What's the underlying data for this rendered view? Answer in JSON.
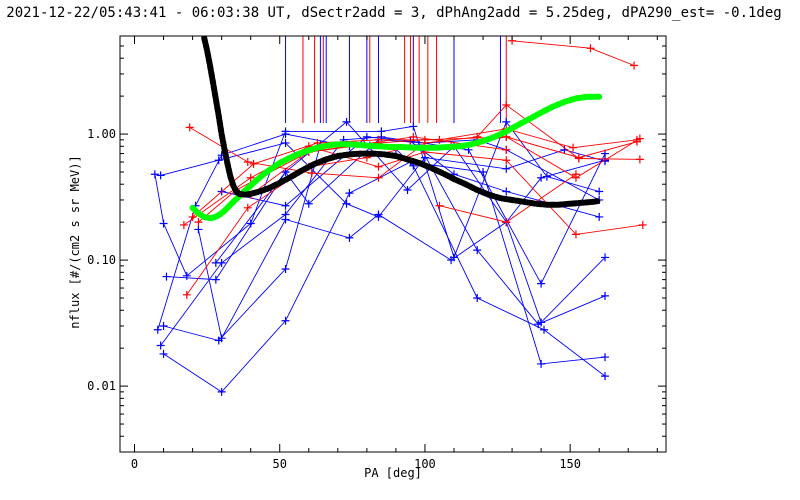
{
  "chart_data": {
    "type": "line",
    "title": "2021-12-22/05:43:41 - 06:03:38 UT, dSectr2add = 3, dPhAng2add = 5.25deg, dPA290_est=  -0.1deg",
    "xlabel": "PA [deg]",
    "ylabel": "nflux [#/(cm2 s sr MeV)]",
    "xlim": [
      -5,
      183
    ],
    "ylim": [
      0.003,
      6.0
    ],
    "yscale": "log",
    "grid": false,
    "x_ticks": [
      0,
      50,
      100,
      150
    ],
    "x_tick_labels": [
      "0",
      "50",
      "100",
      "150"
    ],
    "y_ticks": [
      0.01,
      0.1,
      1.0
    ],
    "y_tick_labels": [
      "0.01",
      "0.10",
      "1.00"
    ],
    "colors": {
      "blue": "#0000ff",
      "red": "#ff0000",
      "green": "#00ff00",
      "black": "#000000"
    },
    "series": [
      {
        "color": "blue",
        "x": [
          7,
          10,
          18,
          40,
          52,
          85,
          96,
          110,
          128,
          142,
          160
        ],
        "y": [
          0.48,
          0.195,
          0.075,
          0.195,
          1.05,
          1.05,
          1.15,
          0.105,
          1.25,
          0.46,
          0.35
        ]
      },
      {
        "color": "blue",
        "x": [
          8,
          21,
          30,
          52,
          74,
          90,
          96,
          118,
          141,
          162
        ],
        "y": [
          0.028,
          0.27,
          0.68,
          1.0,
          0.8,
          0.76,
          0.56,
          0.05,
          0.028,
          0.012
        ]
      },
      {
        "color": "blue",
        "x": [
          9,
          30,
          52,
          72,
          85,
          95,
          115,
          140,
          162
        ],
        "y": [
          0.021,
          0.095,
          0.23,
          0.9,
          0.95,
          0.88,
          0.75,
          0.065,
          0.7
        ]
      },
      {
        "color": "blue",
        "x": [
          10,
          29,
          52,
          64,
          81,
          98,
          118,
          139,
          162
        ],
        "y": [
          0.03,
          0.023,
          0.085,
          0.82,
          0.81,
          0.82,
          0.12,
          0.031,
          0.052
        ]
      },
      {
        "color": "blue",
        "x": [
          10,
          30,
          52,
          74,
          95,
          120,
          140,
          162
        ],
        "y": [
          0.018,
          0.009,
          0.033,
          0.34,
          0.6,
          0.5,
          0.015,
          0.017
        ]
      },
      {
        "color": "blue",
        "x": [
          11,
          28,
          52,
          73,
          94,
          110,
          128,
          140,
          162
        ],
        "y": [
          0.074,
          0.07,
          0.5,
          1.25,
          0.36,
          0.8,
          0.2,
          0.45,
          0.62
        ]
      },
      {
        "color": "blue",
        "x": [
          9,
          29,
          52,
          73,
          84,
          100,
          128,
          148,
          162
        ],
        "y": [
          0.47,
          0.62,
          0.85,
          0.28,
          0.22,
          0.65,
          0.53,
          0.75,
          0.61
        ]
      },
      {
        "color": "blue",
        "x": [
          22,
          30,
          52,
          74,
          84,
          109,
          128,
          140,
          162
        ],
        "y": [
          0.175,
          0.024,
          0.21,
          0.15,
          0.23,
          0.1,
          0.2,
          0.032,
          0.105
        ]
      },
      {
        "color": "blue",
        "x": [
          28,
          52,
          60,
          84,
          100,
          118,
          128,
          160
        ],
        "y": [
          0.095,
          0.5,
          0.28,
          0.9,
          0.85,
          0.9,
          0.75,
          0.3
        ]
      },
      {
        "color": "blue",
        "x": [
          30,
          52,
          80,
          95,
          110,
          128,
          160
        ],
        "y": [
          0.35,
          0.27,
          0.95,
          0.88,
          0.48,
          0.35,
          0.22
        ]
      },
      {
        "color": "red",
        "x": [
          17,
          40,
          60,
          84,
          100,
          128,
          152,
          175
        ],
        "y": [
          0.19,
          0.45,
          0.8,
          0.55,
          0.72,
          0.62,
          0.16,
          0.19
        ]
      },
      {
        "color": "red",
        "x": [
          18,
          39,
          60,
          80,
          95,
          109,
          128,
          152,
          174
        ],
        "y": [
          0.053,
          0.26,
          0.55,
          0.65,
          0.8,
          0.8,
          0.95,
          0.45,
          0.92
        ]
      },
      {
        "color": "red",
        "x": [
          19,
          39,
          61,
          84,
          100,
          118,
          128,
          153,
          174
        ],
        "y": [
          1.13,
          0.6,
          0.49,
          0.45,
          0.85,
          0.95,
          1.7,
          0.64,
          0.63
        ]
      },
      {
        "color": "red",
        "x": [
          20,
          41,
          63,
          84,
          105,
          128,
          151,
          173
        ],
        "y": [
          0.22,
          0.58,
          0.85,
          0.9,
          0.9,
          1.1,
          0.78,
          0.9
        ]
      },
      {
        "color": "red",
        "x": [
          40,
          60,
          84,
          100,
          128,
          153,
          173
        ],
        "y": [
          0.33,
          0.72,
          0.85,
          0.9,
          0.95,
          0.65,
          0.87
        ]
      },
      {
        "color": "red",
        "x": [
          105,
          128,
          152
        ],
        "y": [
          0.27,
          0.2,
          0.48
        ]
      },
      {
        "color": "red",
        "x": [
          130,
          157,
          172
        ],
        "y": [
          5.5,
          4.8,
          3.5
        ]
      },
      {
        "color": "red",
        "x": [
          22,
          35,
          60,
          96,
          128
        ],
        "y": [
          0.2,
          0.36,
          0.72,
          0.95,
          0.75
        ]
      }
    ],
    "vertical_lines": [
      {
        "color": "blue",
        "x": [
          52,
          64,
          66,
          74,
          80,
          84,
          96,
          110,
          126
        ]
      },
      {
        "color": "red",
        "x": [
          58,
          62,
          65,
          81,
          93,
          95,
          98,
          101,
          104,
          128
        ]
      }
    ],
    "fit_curves": [
      {
        "color": "green",
        "x": [
          20,
          22,
          24,
          26,
          28,
          30,
          32,
          34,
          36,
          38,
          40,
          42,
          44,
          46,
          48,
          50,
          53,
          56,
          59,
          62,
          65,
          68,
          71,
          74,
          77,
          80,
          84,
          88,
          92,
          96,
          100,
          104,
          108,
          112,
          116,
          120,
          124,
          128,
          132,
          136,
          140,
          144,
          148,
          152,
          156,
          160
        ],
        "y": [
          0.26,
          0.235,
          0.22,
          0.215,
          0.22,
          0.235,
          0.26,
          0.29,
          0.32,
          0.355,
          0.39,
          0.43,
          0.47,
          0.51,
          0.55,
          0.59,
          0.64,
          0.69,
          0.73,
          0.77,
          0.8,
          0.82,
          0.83,
          0.83,
          0.82,
          0.81,
          0.8,
          0.79,
          0.79,
          0.78,
          0.78,
          0.78,
          0.79,
          0.8,
          0.83,
          0.88,
          0.95,
          1.05,
          1.18,
          1.32,
          1.48,
          1.65,
          1.8,
          1.92,
          1.98,
          1.98
        ]
      },
      {
        "color": "black",
        "x": [
          24,
          25,
          26,
          27,
          28,
          29,
          30,
          31,
          32,
          33,
          34,
          35,
          36,
          38,
          40,
          43,
          46,
          50,
          54,
          58,
          62,
          66,
          70,
          74,
          78,
          82,
          86,
          90,
          94,
          98,
          102,
          106,
          110,
          114,
          118,
          122,
          126,
          130,
          134,
          138,
          142,
          146,
          150,
          154,
          158,
          160
        ],
        "y": [
          5.8,
          4.6,
          3.5,
          2.6,
          1.9,
          1.4,
          1.0,
          0.75,
          0.58,
          0.46,
          0.39,
          0.35,
          0.335,
          0.33,
          0.335,
          0.35,
          0.37,
          0.41,
          0.46,
          0.52,
          0.58,
          0.63,
          0.67,
          0.69,
          0.7,
          0.7,
          0.69,
          0.67,
          0.63,
          0.59,
          0.54,
          0.49,
          0.44,
          0.4,
          0.36,
          0.33,
          0.31,
          0.3,
          0.29,
          0.28,
          0.275,
          0.275,
          0.28,
          0.285,
          0.29,
          0.295
        ]
      }
    ]
  }
}
